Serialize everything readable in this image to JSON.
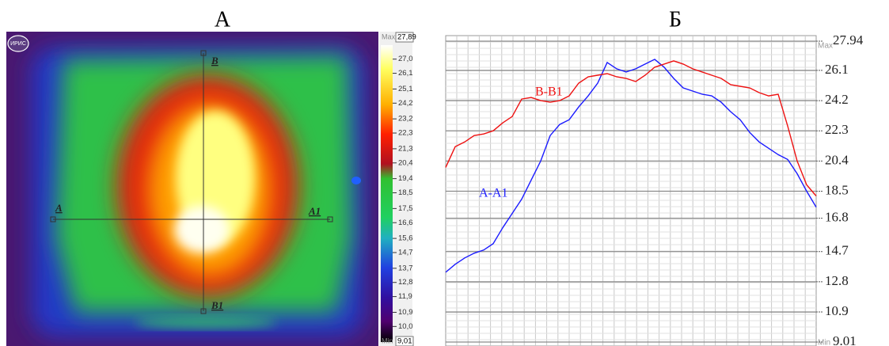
{
  "chart_data": [
    {
      "type": "thermogram",
      "title": "А",
      "logo": "ИРИС",
      "markers": [
        "A",
        "A1",
        "B",
        "B1"
      ],
      "max_label": "Мах",
      "min_label": "Min",
      "zlim": [
        {
          "value": 9.01,
          "label": "9,01"
        },
        {
          "value": 27.89,
          "label": "27,89"
        }
      ],
      "zticks": [
        {
          "value": 27.0,
          "label": "27,0"
        },
        {
          "value": 26.1,
          "label": "26,1"
        },
        {
          "value": 25.1,
          "label": "25,1"
        },
        {
          "value": 24.2,
          "label": "24,2"
        },
        {
          "value": 23.2,
          "label": "23,2"
        },
        {
          "value": 22.3,
          "label": "22,3"
        },
        {
          "value": 21.3,
          "label": "21,3"
        },
        {
          "value": 20.4,
          "label": "20,4"
        },
        {
          "value": 19.4,
          "label": "19,4"
        },
        {
          "value": 18.5,
          "label": "18,5"
        },
        {
          "value": 17.5,
          "label": "17,5"
        },
        {
          "value": 16.6,
          "label": "16,6"
        },
        {
          "value": 15.6,
          "label": "15,6"
        },
        {
          "value": 14.7,
          "label": "14,7"
        },
        {
          "value": 13.7,
          "label": "13,7"
        },
        {
          "value": 12.8,
          "label": "12,8"
        },
        {
          "value": 11.9,
          "label": "11,9"
        },
        {
          "value": 10.9,
          "label": "10,9"
        },
        {
          "value": 10.0,
          "label": "10,0"
        }
      ]
    },
    {
      "type": "line",
      "title": "Б",
      "max_label": "Мах",
      "min_label": "Min",
      "ylim": [
        9.01,
        27.94
      ],
      "yticks": [
        27.94,
        26.1,
        24.2,
        22.3,
        20.4,
        18.5,
        16.8,
        14.7,
        12.8,
        10.9,
        9.01
      ],
      "grid": true,
      "categories": [
        null,
        null,
        null,
        null,
        null,
        null,
        null,
        null,
        null,
        null,
        null,
        null,
        null,
        null,
        null,
        null,
        null,
        null,
        null,
        null,
        null,
        null,
        null,
        null,
        null,
        null,
        null,
        null,
        null,
        null,
        null,
        null,
        null,
        null,
        null,
        null,
        null,
        null,
        null,
        null
      ],
      "series": [
        {
          "name": "A-A1",
          "color": "#1a1aff",
          "values": [
            13.4,
            13.9,
            14.3,
            14.6,
            14.8,
            15.2,
            16.2,
            17.1,
            18.0,
            19.2,
            20.4,
            22.0,
            22.7,
            23.0,
            23.8,
            24.5,
            25.3,
            26.6,
            26.2,
            26.0,
            26.2,
            26.5,
            26.8,
            26.3,
            25.6,
            25.0,
            24.8,
            24.6,
            24.5,
            24.1,
            23.5,
            23.0,
            22.2,
            21.6,
            21.2,
            20.8,
            20.5,
            19.6,
            18.5,
            17.5
          ]
        },
        {
          "name": "B-B1",
          "color": "#ee1111",
          "values": [
            20.0,
            21.3,
            21.6,
            22.0,
            22.1,
            22.3,
            22.8,
            23.2,
            24.3,
            24.4,
            24.2,
            24.1,
            24.2,
            24.5,
            25.3,
            25.7,
            25.8,
            25.9,
            25.7,
            25.6,
            25.4,
            25.8,
            26.3,
            26.5,
            26.7,
            26.5,
            26.2,
            26.0,
            25.8,
            25.6,
            25.2,
            25.1,
            25.0,
            24.7,
            24.5,
            24.6,
            22.6,
            20.4,
            18.9,
            18.2
          ]
        }
      ]
    }
  ]
}
